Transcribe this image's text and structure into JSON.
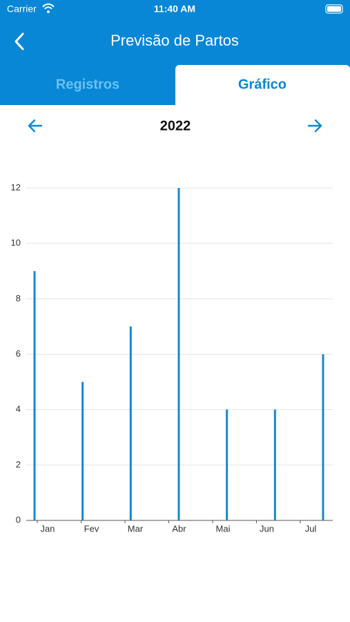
{
  "status": {
    "carrier": "Carrier",
    "time": "11:40 AM"
  },
  "header": {
    "title": "Previsão de Partos"
  },
  "tabs": [
    "Registros",
    "Gráfico"
  ],
  "year": "2022",
  "chart_data": {
    "type": "bar",
    "categories": [
      "Jan",
      "Fev",
      "Mar",
      "Abr",
      "Mai",
      "Jun",
      "Jul"
    ],
    "values": [
      9,
      5,
      7,
      12,
      4,
      4,
      6
    ],
    "color": "#1787cf",
    "ylim": [
      0,
      12
    ],
    "yticks": [
      0,
      2,
      4,
      6,
      8,
      10,
      12
    ],
    "grid": true
  }
}
